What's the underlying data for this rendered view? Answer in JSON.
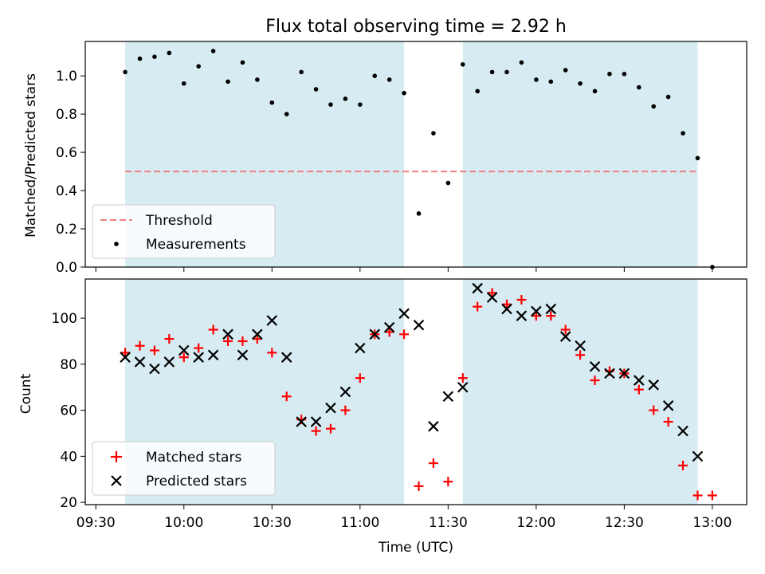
{
  "chart_data": [
    {
      "type": "scatter",
      "title": "Flux total observing time = 2.92 h",
      "ylabel": "Matched/Predicted stars",
      "ylim": [
        0,
        1.18
      ],
      "yticks": [
        0.0,
        0.2,
        0.4,
        0.6,
        0.8,
        1.0
      ],
      "threshold": 0.5,
      "legend_position": "lower-left",
      "legend": [
        "Threshold",
        "Measurements"
      ],
      "colors": {
        "threshold": "#f08080",
        "measurements": "#000000",
        "span": "#add8e6"
      },
      "x": [
        "09:40",
        "09:45",
        "09:50",
        "09:55",
        "10:00",
        "10:05",
        "10:10",
        "10:15",
        "10:20",
        "10:25",
        "10:30",
        "10:35",
        "10:40",
        "10:45",
        "10:50",
        "10:55",
        "11:00",
        "11:05",
        "11:10",
        "11:15",
        "11:20",
        "11:25",
        "11:30",
        "11:35",
        "11:40",
        "11:45",
        "11:50",
        "11:55",
        "12:00",
        "12:05",
        "12:10",
        "12:15",
        "12:20",
        "12:25",
        "12:30",
        "12:35",
        "12:40",
        "12:45",
        "12:50",
        "12:55",
        "13:00"
      ],
      "values": [
        1.02,
        1.09,
        1.1,
        1.12,
        0.96,
        1.05,
        1.13,
        0.97,
        1.07,
        0.98,
        0.86,
        0.8,
        1.02,
        0.93,
        0.85,
        0.88,
        0.85,
        1.0,
        0.98,
        0.91,
        0.28,
        0.7,
        0.44,
        1.06,
        0.92,
        1.02,
        1.02,
        1.07,
        0.98,
        0.97,
        1.03,
        0.96,
        0.92,
        1.01,
        1.01,
        0.94,
        0.84,
        0.89,
        0.7,
        0.57,
        0.0
      ]
    },
    {
      "type": "scatter",
      "xlabel": "Time (UTC)",
      "ylabel": "Count",
      "ylim": [
        19,
        117
      ],
      "yticks": [
        20,
        40,
        60,
        80,
        100
      ],
      "xticks": [
        "09:30",
        "10:00",
        "10:30",
        "11:00",
        "11:30",
        "12:00",
        "12:30",
        "13:00"
      ],
      "legend_position": "lower-left",
      "spans": [
        [
          "09:40",
          "11:15"
        ],
        [
          "11:35",
          "12:55"
        ]
      ],
      "x": [
        "09:40",
        "09:45",
        "09:50",
        "09:55",
        "10:00",
        "10:05",
        "10:10",
        "10:15",
        "10:20",
        "10:25",
        "10:30",
        "10:35",
        "10:40",
        "10:45",
        "10:50",
        "10:55",
        "11:00",
        "11:05",
        "11:10",
        "11:15",
        "11:20",
        "11:25",
        "11:30",
        "11:35",
        "11:40",
        "11:45",
        "11:50",
        "11:55",
        "12:00",
        "12:05",
        "12:10",
        "12:15",
        "12:20",
        "12:25",
        "12:30",
        "12:35",
        "12:40",
        "12:45",
        "12:50",
        "12:55",
        "13:00"
      ],
      "series": [
        {
          "name": "Matched stars",
          "marker": "plus",
          "color": "#ff0000",
          "values": [
            85,
            88,
            86,
            91,
            83,
            87,
            95,
            90,
            90,
            91,
            85,
            66,
            56,
            51,
            52,
            60,
            74,
            93,
            94,
            93,
            27,
            37,
            29,
            74,
            105,
            111,
            106,
            108,
            101,
            101,
            95,
            84,
            73,
            77,
            76,
            69,
            60,
            55,
            36,
            23,
            23
          ]
        },
        {
          "name": "Predicted stars",
          "marker": "x",
          "color": "#000000",
          "values": [
            83,
            81,
            78,
            81,
            86,
            83,
            84,
            93,
            84,
            93,
            99,
            83,
            55,
            55,
            61,
            68,
            87,
            93,
            96,
            102,
            97,
            53,
            66,
            70,
            113,
            109,
            104,
            101,
            103,
            104,
            92,
            88,
            79,
            76,
            76,
            73,
            71,
            62,
            51,
            40,
            null
          ]
        }
      ]
    }
  ]
}
